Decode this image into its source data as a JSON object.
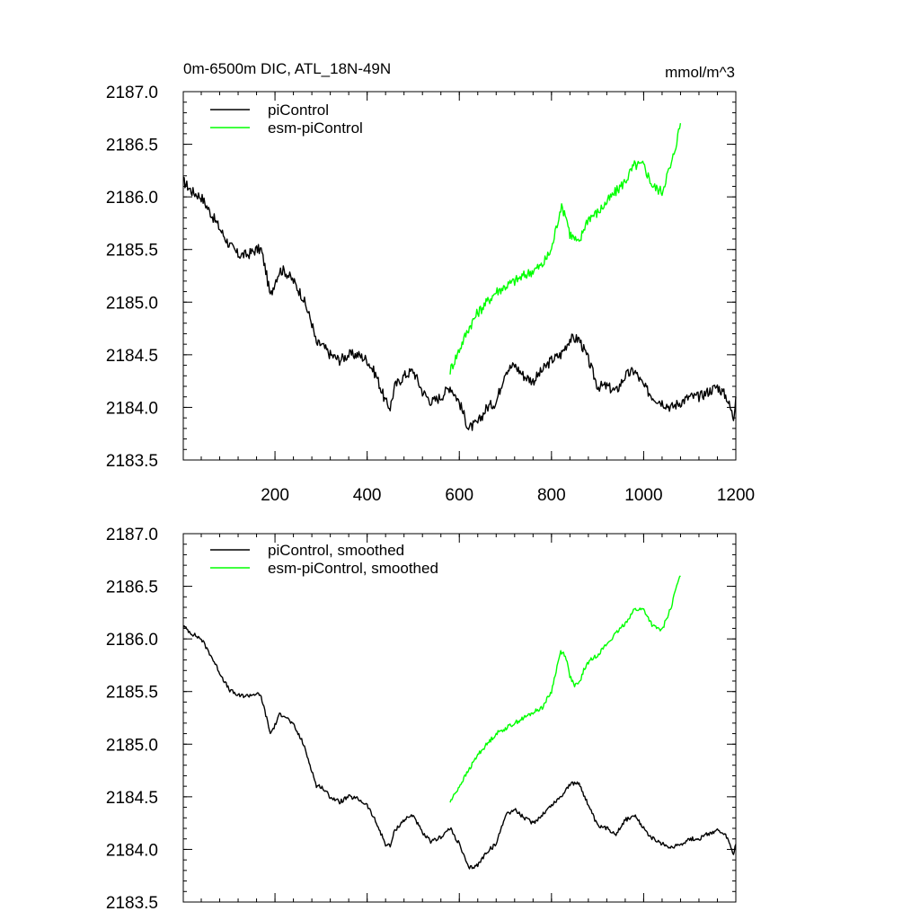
{
  "header": {
    "title": "0m-6500m DIC, ATL_18N-49N",
    "units": "mmol/m^3"
  },
  "chart_data": [
    {
      "type": "line",
      "panel": "top",
      "title": "0m-6500m DIC, ATL_18N-49N",
      "units": "mmol/m^3",
      "xlim": [
        1,
        1200
      ],
      "ylim": [
        2183.5,
        2187.0
      ],
      "xticks": [
        200,
        400,
        600,
        800,
        1000,
        1200
      ],
      "yticks": [
        2183.5,
        2184.0,
        2184.5,
        2185.0,
        2185.5,
        2186.0,
        2186.5,
        2187.0
      ],
      "ytick_labels": [
        "2183.5",
        "2184.0",
        "2184.5",
        "2185.0",
        "2185.5",
        "2186.0",
        "2186.5",
        "2187.0"
      ],
      "legend_position": "top-left",
      "series": [
        {
          "name": "piControl",
          "color": "#000000",
          "x": [
            1,
            20,
            40,
            60,
            80,
            100,
            120,
            140,
            160,
            170,
            180,
            190,
            200,
            210,
            220,
            240,
            260,
            280,
            290,
            300,
            320,
            340,
            360,
            380,
            400,
            420,
            440,
            450,
            460,
            480,
            500,
            520,
            540,
            560,
            580,
            600,
            620,
            640,
            660,
            680,
            700,
            720,
            740,
            760,
            780,
            800,
            820,
            840,
            860,
            880,
            900,
            920,
            940,
            960,
            980,
            1000,
            1020,
            1040,
            1060,
            1080,
            1100,
            1120,
            1140,
            1160,
            1180,
            1195,
            1200
          ],
          "y": [
            2186.15,
            2186.05,
            2186.0,
            2185.85,
            2185.7,
            2185.55,
            2185.45,
            2185.45,
            2185.5,
            2185.5,
            2185.3,
            2185.05,
            2185.2,
            2185.3,
            2185.3,
            2185.2,
            2185.05,
            2184.8,
            2184.6,
            2184.6,
            2184.5,
            2184.45,
            2184.5,
            2184.5,
            2184.45,
            2184.3,
            2184.05,
            2184.0,
            2184.2,
            2184.3,
            2184.35,
            2184.15,
            2184.05,
            2184.1,
            2184.2,
            2184.05,
            2183.8,
            2183.85,
            2184.0,
            2184.05,
            2184.35,
            2184.4,
            2184.3,
            2184.25,
            2184.35,
            2184.45,
            2184.5,
            2184.65,
            2184.65,
            2184.45,
            2184.2,
            2184.2,
            2184.15,
            2184.3,
            2184.35,
            2184.2,
            2184.1,
            2184.05,
            2184.0,
            2184.05,
            2184.1,
            2184.1,
            2184.15,
            2184.2,
            2184.1,
            2183.9,
            2184.1
          ]
        },
        {
          "name": "esm-piControl",
          "color": "#00ff00",
          "x": [
            580,
            600,
            620,
            640,
            660,
            680,
            700,
            720,
            740,
            760,
            780,
            800,
            810,
            820,
            830,
            840,
            850,
            860,
            870,
            880,
            900,
            920,
            940,
            960,
            980,
            1000,
            1020,
            1040,
            1050,
            1060,
            1070,
            1080
          ],
          "y": [
            2184.35,
            2184.55,
            2184.75,
            2184.9,
            2185.0,
            2185.1,
            2185.15,
            2185.2,
            2185.25,
            2185.3,
            2185.35,
            2185.5,
            2185.7,
            2185.9,
            2185.85,
            2185.65,
            2185.6,
            2185.55,
            2185.7,
            2185.8,
            2185.85,
            2185.95,
            2186.05,
            2186.15,
            2186.3,
            2186.3,
            2186.1,
            2186.05,
            2186.2,
            2186.3,
            2186.5,
            2186.7
          ]
        }
      ]
    },
    {
      "type": "line",
      "panel": "bottom",
      "xlim": [
        1,
        1200
      ],
      "ylim": [
        2183.5,
        2187.0
      ],
      "xticks": [
        200,
        400,
        600,
        800,
        1000,
        1200
      ],
      "yticks": [
        2183.5,
        2184.0,
        2184.5,
        2185.0,
        2185.5,
        2186.0,
        2186.5,
        2187.0
      ],
      "ytick_labels": [
        "2183.5",
        "2184.0",
        "2184.5",
        "2185.0",
        "2185.5",
        "2186.0",
        "2186.5",
        "2187.0"
      ],
      "legend_position": "top-left",
      "series": [
        {
          "name": "piControl, smoothed",
          "color": "#000000",
          "x": [
            1,
            20,
            40,
            60,
            80,
            100,
            120,
            140,
            160,
            170,
            180,
            190,
            200,
            210,
            220,
            240,
            260,
            280,
            290,
            300,
            320,
            340,
            360,
            380,
            400,
            420,
            440,
            450,
            460,
            480,
            500,
            520,
            540,
            560,
            580,
            600,
            620,
            640,
            660,
            680,
            700,
            720,
            740,
            760,
            780,
            800,
            820,
            840,
            860,
            880,
            900,
            920,
            940,
            960,
            980,
            1000,
            1020,
            1040,
            1060,
            1080,
            1100,
            1120,
            1140,
            1160,
            1180,
            1195,
            1200
          ],
          "y": [
            2186.12,
            2186.05,
            2186.0,
            2185.85,
            2185.68,
            2185.52,
            2185.46,
            2185.46,
            2185.48,
            2185.45,
            2185.28,
            2185.1,
            2185.18,
            2185.28,
            2185.28,
            2185.18,
            2185.02,
            2184.75,
            2184.6,
            2184.6,
            2184.5,
            2184.45,
            2184.5,
            2184.48,
            2184.42,
            2184.25,
            2184.05,
            2184.03,
            2184.18,
            2184.28,
            2184.33,
            2184.15,
            2184.07,
            2184.12,
            2184.2,
            2184.05,
            2183.82,
            2183.85,
            2183.98,
            2184.05,
            2184.33,
            2184.38,
            2184.3,
            2184.25,
            2184.33,
            2184.42,
            2184.5,
            2184.62,
            2184.63,
            2184.42,
            2184.22,
            2184.2,
            2184.15,
            2184.28,
            2184.32,
            2184.2,
            2184.1,
            2184.05,
            2184.02,
            2184.05,
            2184.1,
            2184.1,
            2184.15,
            2184.18,
            2184.12,
            2183.95,
            2184.05
          ]
        },
        {
          "name": "esm-piControl, smoothed",
          "color": "#00ff00",
          "x": [
            580,
            600,
            620,
            640,
            660,
            680,
            700,
            720,
            740,
            760,
            780,
            800,
            810,
            820,
            830,
            840,
            850,
            860,
            870,
            880,
            900,
            920,
            940,
            960,
            980,
            1000,
            1020,
            1040,
            1050,
            1060,
            1070,
            1080
          ],
          "y": [
            2184.45,
            2184.6,
            2184.75,
            2184.9,
            2185.0,
            2185.1,
            2185.15,
            2185.2,
            2185.25,
            2185.3,
            2185.35,
            2185.5,
            2185.7,
            2185.88,
            2185.85,
            2185.65,
            2185.55,
            2185.58,
            2185.7,
            2185.78,
            2185.85,
            2185.95,
            2186.05,
            2186.15,
            2186.28,
            2186.28,
            2186.12,
            2186.08,
            2186.2,
            2186.3,
            2186.48,
            2186.6
          ]
        }
      ]
    }
  ]
}
